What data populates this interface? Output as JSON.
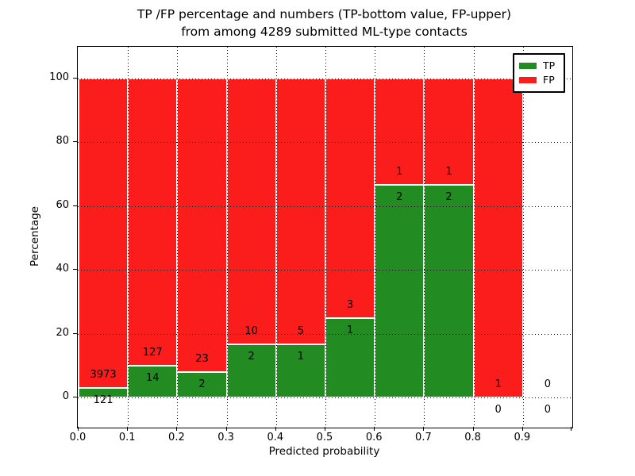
{
  "title": {
    "line1": "TP /FP percentage and numbers (TP-bottom value, FP-upper)",
    "line2": "from among 4289 submitted ML-type contacts"
  },
  "x_axis": {
    "label": "Predicted probability",
    "ticks": [
      "0.0",
      "0.1",
      "0.2",
      "0.3",
      "0.4",
      "0.5",
      "0.6",
      "0.7",
      "0.8",
      "0.9"
    ]
  },
  "y_axis": {
    "label": "Percentage",
    "ticks": [
      "0",
      "20",
      "40",
      "60",
      "80",
      "100"
    ]
  },
  "legend": {
    "items": [
      {
        "label": "TP",
        "color": "#228b22"
      },
      {
        "label": "FP",
        "color": "#fb1c1c"
      }
    ]
  },
  "colors": {
    "tp_green": "#228b22",
    "fp_red": "#fb1c1c",
    "grid": "#000000"
  },
  "chart_data": {
    "type": "bar",
    "stacked": true,
    "normalized_to_percent": true,
    "title": "TP /FP percentage and numbers (TP-bottom value, FP-upper) from among 4289 submitted ML-type contacts",
    "xlabel": "Predicted probability",
    "ylabel": "Percentage",
    "xlim": [
      0.0,
      1.0
    ],
    "ylim": [
      -10,
      110
    ],
    "grid": "dotted",
    "legend_position": "upper right",
    "bin_width": 0.1,
    "bin_starts": [
      0.0,
      0.1,
      0.2,
      0.3,
      0.4,
      0.5,
      0.6,
      0.7,
      0.8,
      0.9
    ],
    "series": [
      {
        "name": "TP",
        "color": "#228b22",
        "counts": [
          121,
          14,
          2,
          2,
          1,
          1,
          2,
          2,
          0,
          0
        ]
      },
      {
        "name": "FP",
        "color": "#fb1c1c",
        "counts": [
          3973,
          127,
          23,
          10,
          5,
          3,
          1,
          1,
          1,
          0
        ]
      }
    ],
    "tp_percent_by_bin": [
      2.96,
      9.93,
      8.0,
      16.67,
      16.67,
      25.0,
      66.67,
      66.67,
      0.0,
      null
    ],
    "total_contacts": 4289
  }
}
